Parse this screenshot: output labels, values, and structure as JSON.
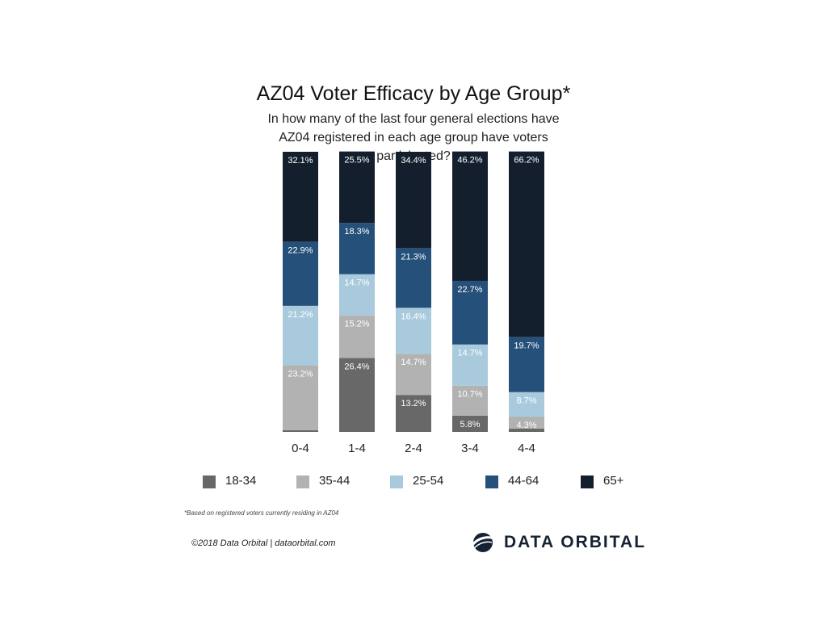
{
  "title": "AZ04 Voter Efficacy by Age Group*",
  "subtitle": "In how many of the last four general elections have AZ04 registered in each age group have voters participated?",
  "chart_data": {
    "type": "bar",
    "stacked": true,
    "categories": [
      "0-4",
      "1-4",
      "2-4",
      "3-4",
      "4-4"
    ],
    "series": [
      {
        "name": "18-34",
        "color": "#686868",
        "values": [
          0.6,
          26.4,
          13.2,
          5.8,
          1.2
        ],
        "labels": [
          "0.6%",
          "26.4%",
          "13.2%",
          "5.8%",
          "1.2%"
        ]
      },
      {
        "name": "35-44",
        "color": "#b2b2b2",
        "values": [
          23.2,
          15.2,
          14.7,
          10.7,
          4.3
        ],
        "labels": [
          "23.2%",
          "15.2%",
          "14.7%",
          "10.7%",
          "4.3%"
        ]
      },
      {
        "name": "25-54",
        "color": "#a9cadd",
        "values": [
          21.2,
          14.7,
          16.4,
          14.7,
          8.7
        ],
        "labels": [
          "21.2%",
          "14.7%",
          "16.4%",
          "14.7%",
          "8.7%"
        ]
      },
      {
        "name": "44-64",
        "color": "#25507a",
        "values": [
          22.9,
          18.3,
          21.3,
          22.7,
          19.7
        ],
        "labels": [
          "22.9%",
          "18.3%",
          "21.3%",
          "22.7%",
          "19.7%"
        ]
      },
      {
        "name": "65+",
        "color": "#141f2e",
        "values": [
          32.1,
          25.5,
          34.4,
          46.2,
          66.2
        ],
        "labels": [
          "32.1%",
          "25.5%",
          "34.4%",
          "46.2%",
          "66.2%"
        ]
      }
    ],
    "legend_position": "bottom",
    "grid": false,
    "ylim": [
      0,
      100
    ]
  },
  "footnote": "*Based on registered voters currently residing in AZ04",
  "copyright": "©2018 Data Orbital | dataorbital.com",
  "brand": {
    "name": "DATA ORBITAL",
    "logo_icon": "orbital-logo-icon"
  }
}
